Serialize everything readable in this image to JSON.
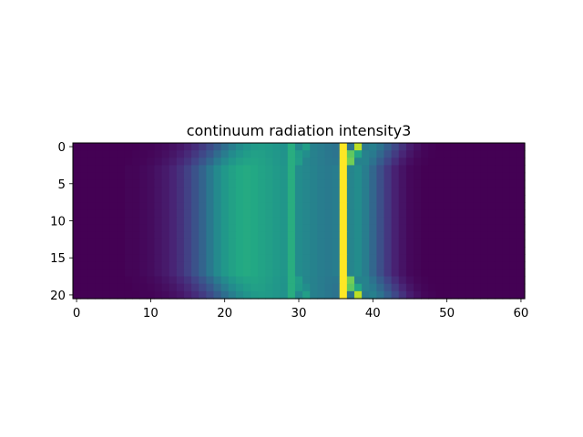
{
  "chart_data": {
    "type": "heatmap",
    "title": "continuum radiation intensity3",
    "xlabel": "",
    "ylabel": "",
    "colormap": "viridis",
    "n_rows": 21,
    "n_cols": 61,
    "xlim": [
      -0.5,
      60.5
    ],
    "ylim": [
      20.5,
      -0.5
    ],
    "x_ticks": [
      0,
      10,
      20,
      30,
      40,
      50,
      60
    ],
    "y_ticks": [
      0,
      5,
      10,
      15,
      20
    ],
    "x_tick_labels": [
      "0",
      "10",
      "20",
      "30",
      "40",
      "50",
      "60"
    ],
    "y_tick_labels": [
      "0",
      "5",
      "10",
      "15",
      "20"
    ],
    "value_range": [
      0,
      1
    ],
    "columns": [
      {
        "x": 0,
        "v": 0.0
      },
      {
        "x": 1,
        "v": 0.0
      },
      {
        "x": 2,
        "v": 0.0
      },
      {
        "x": 3,
        "v": 0.0
      },
      {
        "x": 4,
        "v": 0.0
      },
      {
        "x": 5,
        "v": 0.0
      },
      {
        "x": 6,
        "v": 0.0
      },
      {
        "x": 7,
        "v": 0.01
      },
      {
        "x": 8,
        "v": 0.01
      },
      {
        "x": 9,
        "v": 0.02
      },
      {
        "x": 10,
        "v": 0.03
      },
      {
        "x": 11,
        "v": 0.05
      },
      {
        "x": 12,
        "v": 0.07
      },
      {
        "x": 13,
        "v": 0.1
      },
      {
        "x": 14,
        "v": 0.14
      },
      {
        "x": 15,
        "v": 0.19
      },
      {
        "x": 16,
        "v": 0.25
      },
      {
        "x": 17,
        "v": 0.32
      },
      {
        "x": 18,
        "v": 0.4
      },
      {
        "x": 19,
        "v": 0.47
      },
      {
        "x": 20,
        "v": 0.53
      },
      {
        "x": 21,
        "v": 0.57
      },
      {
        "x": 22,
        "v": 0.6
      },
      {
        "x": 23,
        "v": 0.61
      },
      {
        "x": 24,
        "v": 0.6
      },
      {
        "x": 25,
        "v": 0.58
      },
      {
        "x": 26,
        "v": 0.56
      },
      {
        "x": 27,
        "v": 0.54
      },
      {
        "x": 28,
        "v": 0.52
      },
      {
        "x": 29,
        "v": 0.62
      },
      {
        "x": 30,
        "v": 0.48
      },
      {
        "x": 31,
        "v": 0.46
      },
      {
        "x": 32,
        "v": 0.44
      },
      {
        "x": 33,
        "v": 0.42
      },
      {
        "x": 34,
        "v": 0.41
      },
      {
        "x": 35,
        "v": 0.42
      },
      {
        "x": 36,
        "v": 1.0
      },
      {
        "x": 37,
        "v": 0.45
      },
      {
        "x": 38,
        "v": 0.48
      },
      {
        "x": 39,
        "v": 0.42
      },
      {
        "x": 40,
        "v": 0.33
      },
      {
        "x": 41,
        "v": 0.24
      },
      {
        "x": 42,
        "v": 0.16
      },
      {
        "x": 43,
        "v": 0.09
      },
      {
        "x": 44,
        "v": 0.05
      },
      {
        "x": 45,
        "v": 0.02
      },
      {
        "x": 46,
        "v": 0.01
      },
      {
        "x": 47,
        "v": 0.0
      },
      {
        "x": 48,
        "v": 0.0
      },
      {
        "x": 49,
        "v": 0.0
      },
      {
        "x": 50,
        "v": 0.0
      },
      {
        "x": 51,
        "v": 0.0
      },
      {
        "x": 52,
        "v": 0.0
      },
      {
        "x": 53,
        "v": 0.0
      },
      {
        "x": 54,
        "v": 0.0
      },
      {
        "x": 55,
        "v": 0.0
      },
      {
        "x": 56,
        "v": 0.0
      },
      {
        "x": 57,
        "v": 0.0
      },
      {
        "x": 58,
        "v": 0.0
      },
      {
        "x": 59,
        "v": 0.0
      },
      {
        "x": 60,
        "v": 0.0
      }
    ],
    "row_edge_shift": 2
  }
}
